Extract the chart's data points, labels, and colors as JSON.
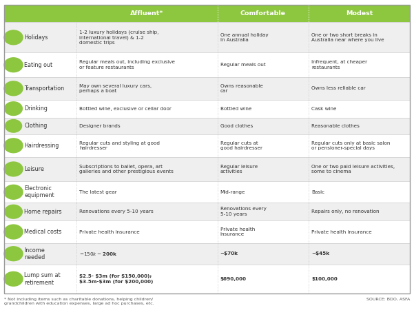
{
  "header_bg": "#8dc63f",
  "header_text_color": "#ffffff",
  "row_bg_odd": "#efefef",
  "row_bg_even": "#ffffff",
  "icon_bg": "#8dc63f",
  "border_color": "#cccccc",
  "categories": [
    "Holidays",
    "Eating out",
    "Transportation",
    "Drinking",
    "Clothing",
    "Hairdressing",
    "Leisure",
    "Electronic\nequipment",
    "Home repairs",
    "Medical costs",
    "Income\nneeded",
    "Lump sum at\nretirement"
  ],
  "affluent": [
    "1-2 luxury holidays (cruise ship,\ninternational travel) & 1-2\ndomestic trips",
    "Regular meals out, including exclusive\nor feature restaurants",
    "May own several luxury cars,\nperhaps a boat",
    "Bottled wine, exclusive or cellar door",
    "Designer brands",
    "Regular cuts and styling at good\nhairdresser",
    "Subscriptions to ballet, opera, art\ngalleries and other prestigious events",
    "The latest gear",
    "Renovations every 5-10 years",
    "Private health insurance",
    "~$150k - $200k",
    "$2.5- $3m (for $150,000);\n$3.5m-$3m (for $200,000)"
  ],
  "comfortable": [
    "One annual holiday\nin Australia",
    "Regular meals out",
    "Owns reasonable\ncar",
    "Bottled wine",
    "Good clothes",
    "Regular cuts at\ngood hairdresser",
    "Regular leisure\nactivities",
    "Mid-range",
    "Renovations every\n5-10 years",
    "Private health\ninsurance",
    "~$70k",
    "$690,000"
  ],
  "modest": [
    "One or two short breaks in\nAustralia near where you live",
    "Infrequent, at cheaper\nrestaurants",
    "Owns less reliable car",
    "Cask wine",
    "Reasonable clothes",
    "Regular cuts only at basic salon\nor pensioner-special days",
    "One or two paid leisure activities,\nsome to cinema",
    "Basic",
    "Repairs only, no renovation",
    "Private health insurance",
    "~$45k",
    "$100,000"
  ],
  "bold_rows": [
    10,
    11
  ],
  "footnote": "* Not including items such as charitable donations, helping children/\ngrandchildren with education expenses, large ad hoc purchases, etc.",
  "source": "SOURCE: BDO, ASFA"
}
